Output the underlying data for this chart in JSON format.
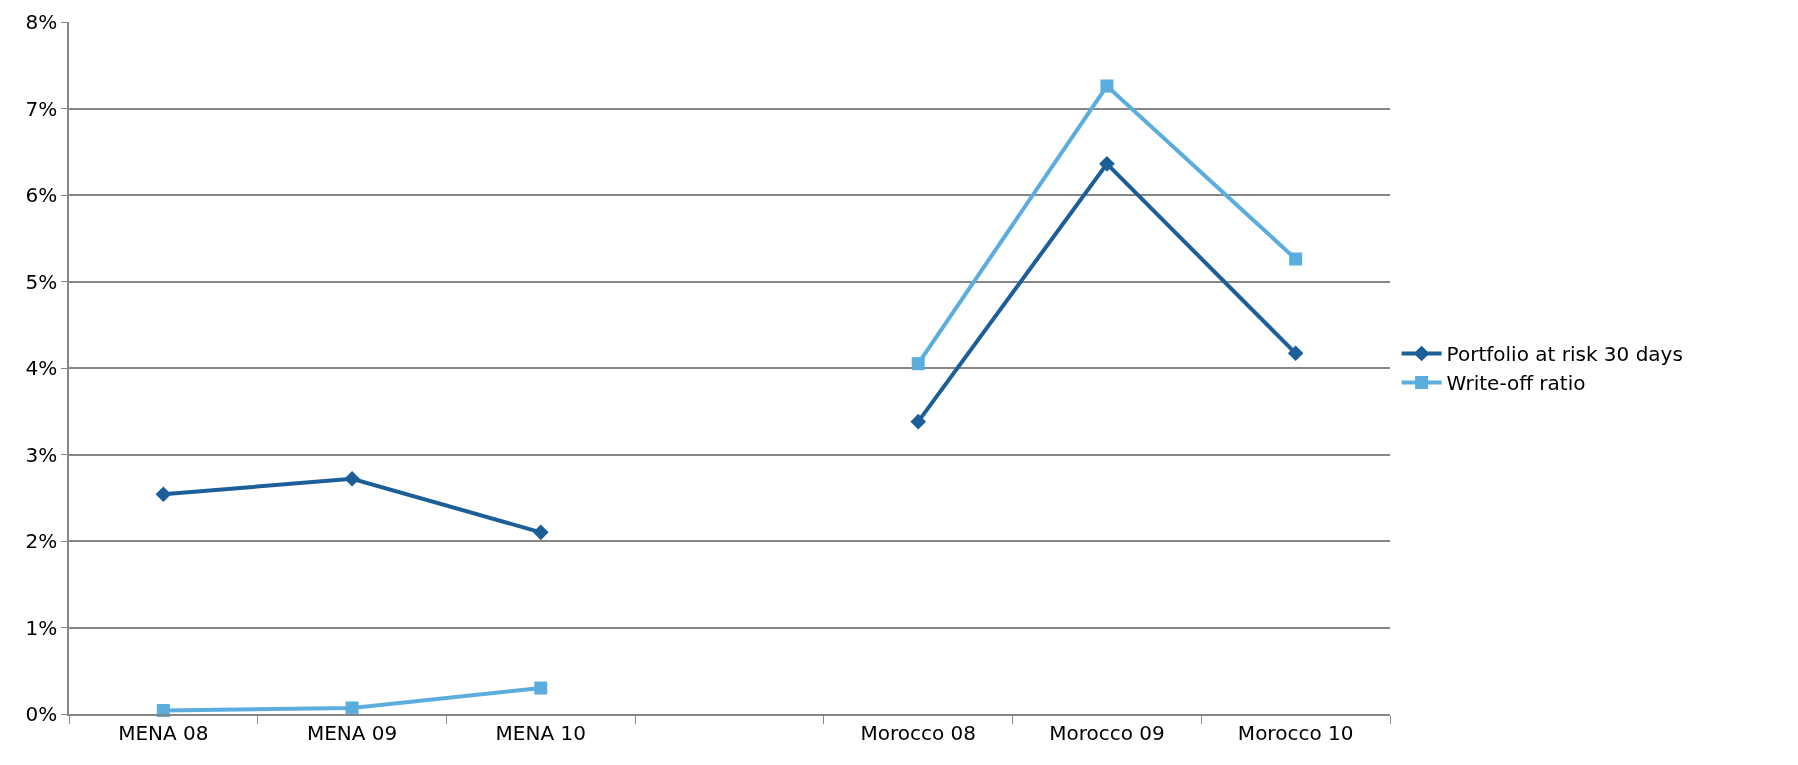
{
  "chart_data": {
    "type": "line",
    "categories": [
      "MENA 08",
      "MENA 09",
      "MENA 10",
      null,
      "Morocco 08",
      "Morocco 09",
      "Morocco 10"
    ],
    "series": [
      {
        "name": "Portfolio at risk 30 days",
        "color": "#1b5e98",
        "marker": "diamond",
        "values": [
          2.54,
          2.72,
          2.1,
          null,
          3.38,
          6.36,
          4.17
        ]
      },
      {
        "name": "Write-off ratio",
        "color": "#5badde",
        "marker": "square",
        "values": [
          0.04,
          0.07,
          0.3,
          null,
          4.05,
          7.26,
          5.26
        ]
      }
    ],
    "ylim": [
      0,
      8
    ],
    "yticks": [
      {
        "value": 0,
        "label": "0%"
      },
      {
        "value": 1,
        "label": "1%"
      },
      {
        "value": 2,
        "label": "2%"
      },
      {
        "value": 3,
        "label": "3%"
      },
      {
        "value": 4,
        "label": "4%"
      },
      {
        "value": 5,
        "label": "5%"
      },
      {
        "value": 6,
        "label": "6%"
      },
      {
        "value": 7,
        "label": "7%"
      },
      {
        "value": 8,
        "label": "8%"
      }
    ],
    "grid": "y",
    "legend": "right",
    "line_style": "solid"
  }
}
